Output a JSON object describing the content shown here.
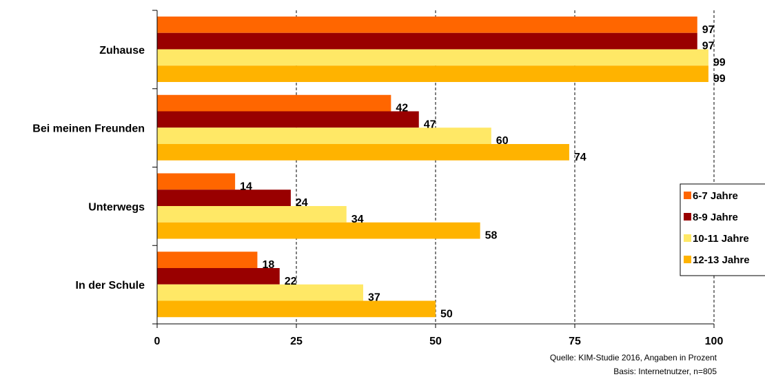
{
  "chart_data": {
    "type": "bar",
    "orientation": "horizontal",
    "categories": [
      "Zuhause",
      "Bei meinen Freunden",
      "Unterwegs",
      "In der Schule"
    ],
    "series": [
      {
        "name": "6-7 Jahre",
        "color": "#ff6600",
        "values": [
          97,
          42,
          14,
          18
        ]
      },
      {
        "name": "8-9 Jahre",
        "color": "#990000",
        "values": [
          97,
          47,
          24,
          22
        ]
      },
      {
        "name": "10-11 Jahre",
        "color": "#ffe866",
        "values": [
          99,
          60,
          34,
          37
        ]
      },
      {
        "name": "12-13 Jahre",
        "color": "#ffb300",
        "values": [
          99,
          74,
          58,
          50
        ]
      }
    ],
    "xlim": [
      0,
      100
    ],
    "xticks": [
      0,
      25,
      50,
      75,
      100
    ],
    "grid": "vertical dashed",
    "legend": "right",
    "title": "",
    "xlabel": "",
    "ylabel": ""
  },
  "notes": {
    "source": "Quelle: KIM-Studie 2016, Angaben in Prozent",
    "basis": "Basis: Internetnutzer, n=805"
  }
}
